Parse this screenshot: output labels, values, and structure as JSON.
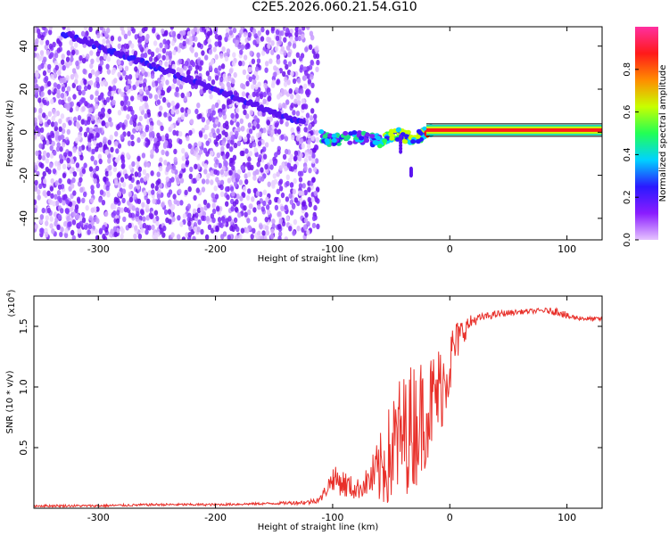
{
  "title": "C2E5.2026.060.21.54.G10",
  "chart_data": [
    {
      "type": "heatmap",
      "title": "",
      "xlabel": "Height of straight line (km)",
      "ylabel": "Frequency (Hz)",
      "xlim": [
        -355,
        130
      ],
      "ylim": [
        -50,
        49
      ],
      "xticks": [
        -300,
        -200,
        -100,
        0,
        100
      ],
      "yticks": [
        -40,
        -20,
        0,
        20,
        40
      ],
      "colorbar": {
        "label": "Normalized spectral amplitude",
        "range": [
          0,
          1
        ],
        "ticks": [
          0.0,
          0.2,
          0.4,
          0.6,
          0.8
        ],
        "colormap": [
          "#e6c3ff",
          "#8a1cff",
          "#2a19ff",
          "#00d2ff",
          "#22ff55",
          "#c8ff00",
          "#ff8c00",
          "#ff1a1a",
          "#ff2fa0"
        ]
      },
      "noise_region_x": [
        -355,
        -120
      ],
      "ridge_line": {
        "x": [
          -330,
          -250,
          -190,
          -150,
          -125
        ],
        "y": [
          46,
          30,
          18,
          9,
          4
        ]
      },
      "carrier_band": {
        "x": [
          -110,
          -100,
          -80,
          -60,
          -45,
          -30,
          -20,
          -10,
          0,
          30,
          60,
          80,
          95,
          130
        ],
        "y": [
          -2,
          -4,
          -2,
          -4,
          -1,
          -3,
          0,
          1,
          1,
          1,
          1,
          1,
          1,
          1
        ]
      },
      "vertical_features": [
        {
          "x": -42,
          "y": [
            -9,
            -2
          ]
        },
        {
          "x": -33,
          "y": [
            -20,
            -17
          ]
        }
      ]
    },
    {
      "type": "line",
      "title": "",
      "xlabel": "Height of straight line (km)",
      "ylabel": "SNR (10 * v/v)",
      "y_multiplier_label": "(x10",
      "y_multiplier_exp": "4",
      "xlim": [
        -355,
        130
      ],
      "ylim": [
        0,
        1.75
      ],
      "xticks": [
        -300,
        -200,
        -100,
        0,
        100
      ],
      "yticks": [
        0.5,
        1.0,
        1.5
      ],
      "ytick_labels": [
        "0.5",
        "1.0",
        "1.5"
      ],
      "series": [
        {
          "color": "#e8302a",
          "x": [
            -355,
            -300,
            -250,
            -200,
            -150,
            -120,
            -110,
            -100,
            -90,
            -80,
            -70,
            -60,
            -50,
            -45,
            -40,
            -30,
            -20,
            -10,
            -5,
            0,
            5,
            10,
            20,
            30,
            40,
            60,
            80,
            95,
            100,
            110,
            120,
            130
          ],
          "y": [
            0.02,
            0.02,
            0.03,
            0.03,
            0.04,
            0.05,
            0.08,
            0.25,
            0.2,
            0.15,
            0.22,
            0.3,
            0.45,
            0.55,
            0.6,
            0.7,
            0.8,
            0.95,
            1.05,
            1.2,
            1.35,
            1.45,
            1.55,
            1.58,
            1.6,
            1.62,
            1.63,
            1.62,
            1.58,
            1.57,
            1.56,
            1.56
          ],
          "spread": [
            0.01,
            0.01,
            0.01,
            0.01,
            0.01,
            0.02,
            0.03,
            0.1,
            0.12,
            0.08,
            0.12,
            0.3,
            0.45,
            0.55,
            0.5,
            0.55,
            0.45,
            0.4,
            0.35,
            0.3,
            0.2,
            0.12,
            0.05,
            0.03,
            0.03,
            0.02,
            0.02,
            0.04,
            0.03,
            0.02,
            0.02,
            0.02
          ]
        }
      ]
    }
  ]
}
